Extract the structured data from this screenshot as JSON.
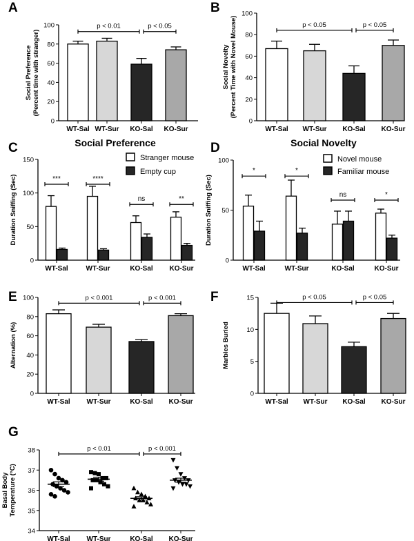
{
  "chart_data": [
    {
      "letter": "A",
      "type": "bar",
      "title": "",
      "categories": [
        "WT-Sal",
        "WT-Sur",
        "KO-Sal",
        "KO-Sur"
      ],
      "values": [
        80,
        83,
        59,
        74
      ],
      "errors": [
        3,
        3,
        6,
        3
      ],
      "bar_colors": [
        "#ffffff",
        "#d7d7d7",
        "#262626",
        "#a8a8a8"
      ],
      "ylabel": [
        "Social Preference",
        "(Percent time with stranger)"
      ],
      "ylim": [
        0,
        100
      ],
      "yticks": [
        0,
        20,
        40,
        60,
        80,
        100
      ],
      "comparisons": [
        {
          "from": 0,
          "to": 2,
          "y": 93,
          "label": "p  < 0.01"
        },
        {
          "from": 2,
          "to": 3,
          "y": 93,
          "label": "p < 0.05"
        }
      ]
    },
    {
      "letter": "B",
      "type": "bar",
      "title": "",
      "categories": [
        "WT-Sal",
        "WT-Sur",
        "KO-Sal",
        "KO-Sur"
      ],
      "values": [
        67,
        65,
        44,
        70
      ],
      "errors": [
        7,
        6,
        7,
        5
      ],
      "bar_colors": [
        "#ffffff",
        "#d7d7d7",
        "#262626",
        "#a8a8a8"
      ],
      "ylabel": [
        "Social Novelty",
        "(Percent Time with Novel Mouse)"
      ],
      "ylim": [
        0,
        100
      ],
      "yticks": [
        0,
        20,
        40,
        60,
        80,
        100
      ],
      "comparisons": [
        {
          "from": 0,
          "to": 2,
          "y": 84,
          "label": "p < 0.05"
        },
        {
          "from": 2,
          "to": 3,
          "y": 84,
          "label": "p < 0.05"
        }
      ]
    },
    {
      "letter": "C",
      "type": "grouped-bar",
      "title": "Social Preference",
      "categories": [
        "WT-Sal",
        "WT-Sur",
        "KO-Sal",
        "KO-Sur"
      ],
      "series": [
        {
          "name": "Stranger mouse",
          "color": "#ffffff",
          "values": [
            80,
            95,
            56,
            64
          ],
          "errors": [
            16,
            15,
            10,
            8
          ]
        },
        {
          "name": "Empty cup",
          "color": "#262626",
          "values": [
            16,
            15,
            34,
            22
          ],
          "errors": [
            2,
            2,
            5,
            3
          ]
        }
      ],
      "ylabel": [
        "Duration Sniffing (Sec)"
      ],
      "ylim": [
        0,
        150
      ],
      "yticks": [
        0,
        50,
        100,
        150
      ],
      "significance": [
        {
          "group": 0,
          "y": 113,
          "label": "***"
        },
        {
          "group": 1,
          "y": 113,
          "label": "****"
        },
        {
          "group": 2,
          "y": 83,
          "label": "ns"
        },
        {
          "group": 3,
          "y": 83,
          "label": "**"
        }
      ]
    },
    {
      "letter": "D",
      "type": "grouped-bar",
      "title": "Social Novelty",
      "categories": [
        "WT-Sal",
        "WT-Sur",
        "KO-Sal",
        "KO-Sur"
      ],
      "series": [
        {
          "name": "Novel mouse",
          "color": "#ffffff",
          "values": [
            54,
            64,
            36,
            47
          ],
          "errors": [
            11,
            16,
            13,
            4
          ]
        },
        {
          "name": "Familiar mouse",
          "color": "#262626",
          "values": [
            29,
            27,
            39,
            22
          ],
          "errors": [
            10,
            5,
            10,
            3
          ]
        }
      ],
      "ylabel": [
        "Duration Sniffing (Sec)"
      ],
      "ylim": [
        0,
        100
      ],
      "yticks": [
        0,
        50,
        100
      ],
      "significance": [
        {
          "group": 0,
          "y": 84,
          "label": "*"
        },
        {
          "group": 1,
          "y": 84,
          "label": "*"
        },
        {
          "group": 2,
          "y": 60,
          "label": "ns"
        },
        {
          "group": 3,
          "y": 60,
          "label": "*"
        }
      ]
    },
    {
      "letter": "E",
      "type": "bar",
      "title": "",
      "categories": [
        "WT-Sal",
        "WT-Sur",
        "KO-Sal",
        "KO-Sur"
      ],
      "values": [
        83,
        69,
        54,
        81
      ],
      "errors": [
        4,
        3,
        2,
        2
      ],
      "bar_colors": [
        "#ffffff",
        "#d7d7d7",
        "#262626",
        "#a8a8a8"
      ],
      "ylabel": [
        "Alternation (%)"
      ],
      "ylim": [
        0,
        100
      ],
      "yticks": [
        0,
        20,
        40,
        60,
        80,
        100
      ],
      "comparisons": [
        {
          "from": 0,
          "to": 2,
          "y": 94,
          "label": "p < 0.001"
        },
        {
          "from": 2,
          "to": 3,
          "y": 94,
          "label": "p < 0.001"
        }
      ]
    },
    {
      "letter": "F",
      "type": "bar",
      "title": "",
      "categories": [
        "WT-Sal",
        "WT-Sur",
        "KO-Sal",
        "KO-Sur"
      ],
      "values": [
        12.5,
        10.9,
        7.3,
        11.7
      ],
      "errors": [
        1.6,
        1.2,
        0.7,
        0.8
      ],
      "bar_colors": [
        "#ffffff",
        "#d7d7d7",
        "#262626",
        "#a8a8a8"
      ],
      "ylabel": [
        "Marbles Buried"
      ],
      "ylim": [
        0,
        15
      ],
      "yticks": [
        0,
        5,
        10,
        15
      ],
      "comparisons": [
        {
          "from": 0,
          "to": 2,
          "y": 14.2,
          "label": "p < 0.05"
        },
        {
          "from": 2,
          "to": 3,
          "y": 14.2,
          "label": "p < 0.05"
        }
      ]
    },
    {
      "letter": "G",
      "type": "scatter",
      "title": "",
      "categories": [
        "WT-Sal",
        "WT-Sur",
        "KO-Sal",
        "KO-Sur"
      ],
      "groups": [
        {
          "name": "WT-Sal",
          "marker": "circle",
          "mean": 36.3,
          "sem": 0.12,
          "points": [
            37.0,
            36.8,
            36.6,
            36.5,
            36.4,
            36.3,
            36.2,
            36.1,
            36.0,
            35.9,
            35.8,
            35.7
          ]
        },
        {
          "name": "WT-Sur",
          "marker": "square",
          "mean": 36.55,
          "sem": 0.1,
          "points": [
            36.9,
            36.85,
            36.8,
            36.6,
            36.6,
            36.5,
            36.5,
            36.4,
            36.3,
            36.2,
            36.1
          ]
        },
        {
          "name": "KO-Sal",
          "marker": "triangle-up",
          "mean": 35.6,
          "sem": 0.08,
          "points": [
            36.1,
            35.9,
            35.8,
            35.7,
            35.6,
            35.6,
            35.5,
            35.5,
            35.4,
            35.3,
            35.2
          ]
        },
        {
          "name": "KO-Sur",
          "marker": "triangle-down",
          "mean": 36.5,
          "sem": 0.1,
          "points": [
            37.5,
            37.1,
            36.8,
            36.6,
            36.5,
            36.5,
            36.4,
            36.3,
            36.3,
            36.2,
            36.1
          ]
        }
      ],
      "ylabel": [
        "Basal Body",
        "Temperature (°C)"
      ],
      "ylim": [
        34,
        38
      ],
      "yticks": [
        34,
        35,
        36,
        37,
        38
      ],
      "comparisons": [
        {
          "from": 0,
          "to": 2,
          "y": 37.8,
          "label": "p < 0.01"
        },
        {
          "from": 2,
          "to": 3,
          "y": 37.8,
          "label": "p < 0.001"
        }
      ]
    }
  ]
}
